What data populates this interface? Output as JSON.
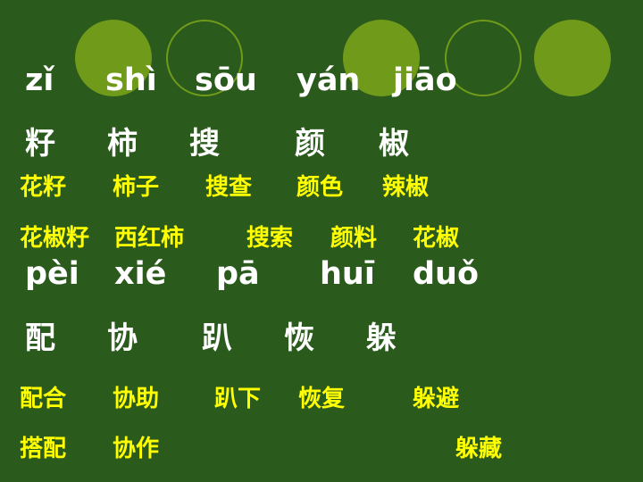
{
  "row1": {
    "pinyin": [
      "zǐ",
      "shì",
      "sōu",
      "yán",
      "jiāo"
    ],
    "chars": [
      "籽",
      "柿",
      "搜",
      "颜",
      "椒"
    ],
    "words_a": [
      "花籽",
      "柿子",
      "搜查",
      "颜色",
      "辣椒"
    ],
    "words_b": [
      "花椒籽",
      "西红柿",
      "搜索",
      "颜料",
      "花椒"
    ]
  },
  "row2": {
    "pinyin": [
      "pèi",
      "xié",
      "pā",
      "huī",
      "duǒ"
    ],
    "chars": [
      "配",
      "协",
      "趴",
      "恢",
      "躲"
    ],
    "words_a": [
      "配合",
      "协助",
      "趴下",
      "恢复",
      "躲避"
    ],
    "words_b": [
      "搭配",
      "协作",
      "躲藏"
    ]
  },
  "colors": {
    "background": "#2b5a1d",
    "circle": "#6f9a1a",
    "pinyin_text": "#ffffff",
    "word_text": "#ffff00"
  }
}
